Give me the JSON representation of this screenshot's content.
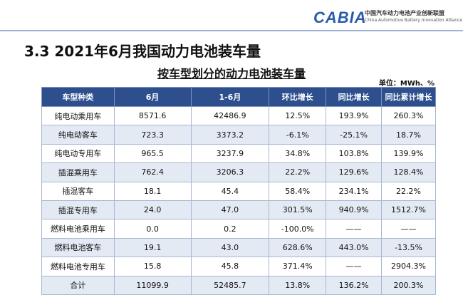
{
  "header": {
    "logo": "CABIA",
    "org_cn": "中国汽车动力电池产业创新联盟",
    "org_en": "China Automotive Battery Innovation Alliance"
  },
  "title": "3.3 2021年6月我国动力电池装车量",
  "subtitle": "按车型划分的动力电池装车量",
  "unit": "单位：MWh、%",
  "table": {
    "columns": [
      "车型种类",
      "6月",
      "1-6月",
      "环比增长",
      "同比增长",
      "同比累计增长"
    ],
    "rows": [
      [
        "纯电动乘用车",
        "8571.6",
        "42486.9",
        "12.5%",
        "193.9%",
        "260.3%"
      ],
      [
        "纯电动客车",
        "723.3",
        "3373.2",
        "-6.1%",
        "-25.1%",
        "18.7%"
      ],
      [
        "纯电动专用车",
        "965.5",
        "3237.9",
        "34.8%",
        "103.8%",
        "139.9%"
      ],
      [
        "插混乘用车",
        "762.4",
        "3206.3",
        "22.2%",
        "129.6%",
        "128.4%"
      ],
      [
        "插混客车",
        "18.1",
        "45.4",
        "58.4%",
        "234.1%",
        "22.2%"
      ],
      [
        "插混专用车",
        "24.0",
        "47.0",
        "301.5%",
        "940.9%",
        "1512.7%"
      ],
      [
        "燃料电池乘用车",
        "0.0",
        "0.2",
        "-100.0%",
        "——",
        "——"
      ],
      [
        "燃料电池客车",
        "19.1",
        "43.0",
        "628.6%",
        "443.0%",
        "-13.5%"
      ],
      [
        "燃料电池专用车",
        "15.8",
        "45.8",
        "371.4%",
        "——",
        "2904.3%"
      ],
      [
        "合计",
        "11099.9",
        "52485.7",
        "13.8%",
        "136.2%",
        "200.3%"
      ]
    ]
  }
}
